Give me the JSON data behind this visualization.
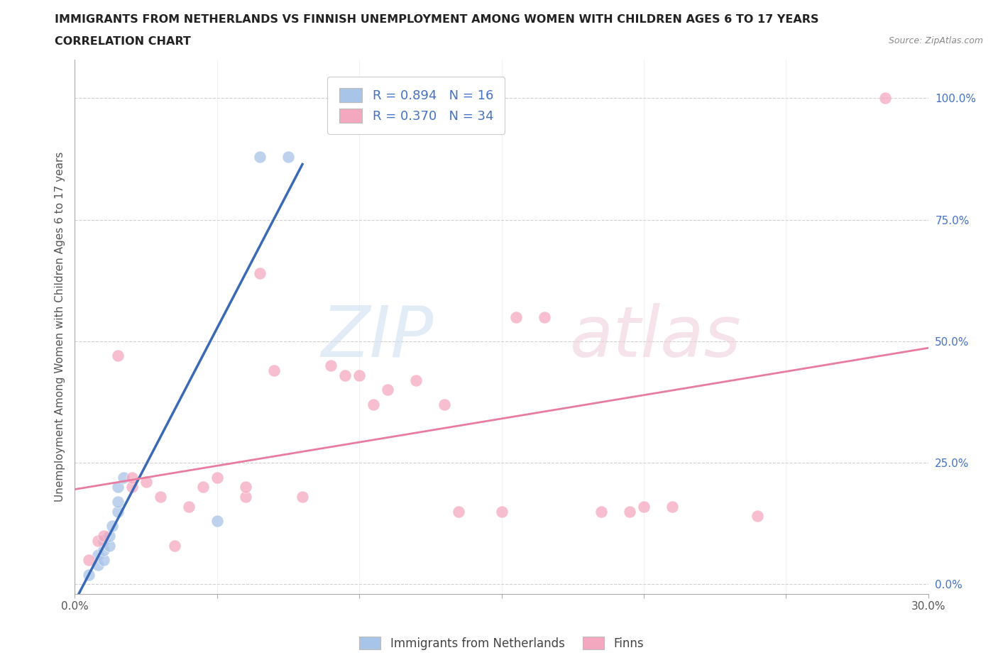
{
  "title_line1": "IMMIGRANTS FROM NETHERLANDS VS FINNISH UNEMPLOYMENT AMONG WOMEN WITH CHILDREN AGES 6 TO 17 YEARS",
  "title_line2": "CORRELATION CHART",
  "source_text": "Source: ZipAtlas.com",
  "ylabel": "Unemployment Among Women with Children Ages 6 to 17 years",
  "xlim": [
    0.0,
    0.3
  ],
  "ylim": [
    -0.02,
    1.08
  ],
  "x_ticks": [
    0.0,
    0.05,
    0.1,
    0.15,
    0.2,
    0.25,
    0.3
  ],
  "x_tick_labels": [
    "0.0%",
    "",
    "",
    "",
    "",
    "",
    "30.0%"
  ],
  "y_tick_labels": [
    "0.0%",
    "25.0%",
    "50.0%",
    "75.0%",
    "100.0%"
  ],
  "y_ticks": [
    0.0,
    0.25,
    0.5,
    0.75,
    1.0
  ],
  "r_blue": 0.894,
  "n_blue": 16,
  "r_pink": 0.37,
  "n_pink": 34,
  "blue_color": "#a8c4e8",
  "pink_color": "#f4a8bf",
  "blue_line_color": "#3a6ab5",
  "pink_line_color": "#e87ca0",
  "legend_text_color": "#4472c4",
  "watermark_zip": "ZIP",
  "watermark_atlas": "atlas",
  "scatter_blue_x": [
    0.005,
    0.008,
    0.008,
    0.01,
    0.01,
    0.01,
    0.012,
    0.012,
    0.013,
    0.015,
    0.015,
    0.015,
    0.017,
    0.05,
    0.065,
    0.075
  ],
  "scatter_blue_y": [
    0.02,
    0.04,
    0.06,
    0.05,
    0.07,
    0.09,
    0.08,
    0.1,
    0.12,
    0.15,
    0.17,
    0.2,
    0.22,
    0.13,
    0.88,
    0.88
  ],
  "scatter_pink_x": [
    0.005,
    0.008,
    0.01,
    0.015,
    0.02,
    0.02,
    0.025,
    0.03,
    0.035,
    0.04,
    0.045,
    0.05,
    0.06,
    0.06,
    0.065,
    0.07,
    0.08,
    0.09,
    0.095,
    0.1,
    0.105,
    0.11,
    0.12,
    0.13,
    0.135,
    0.15,
    0.155,
    0.165,
    0.185,
    0.195,
    0.2,
    0.21,
    0.24,
    0.285
  ],
  "scatter_pink_y": [
    0.05,
    0.09,
    0.1,
    0.47,
    0.2,
    0.22,
    0.21,
    0.18,
    0.08,
    0.16,
    0.2,
    0.22,
    0.18,
    0.2,
    0.64,
    0.44,
    0.18,
    0.45,
    0.43,
    0.43,
    0.37,
    0.4,
    0.42,
    0.37,
    0.15,
    0.15,
    0.55,
    0.55,
    0.15,
    0.15,
    0.16,
    0.16,
    0.14,
    1.0
  ],
  "blue_line_x": [
    0.0,
    0.08
  ],
  "pink_line_x": [
    0.0,
    0.3
  ]
}
